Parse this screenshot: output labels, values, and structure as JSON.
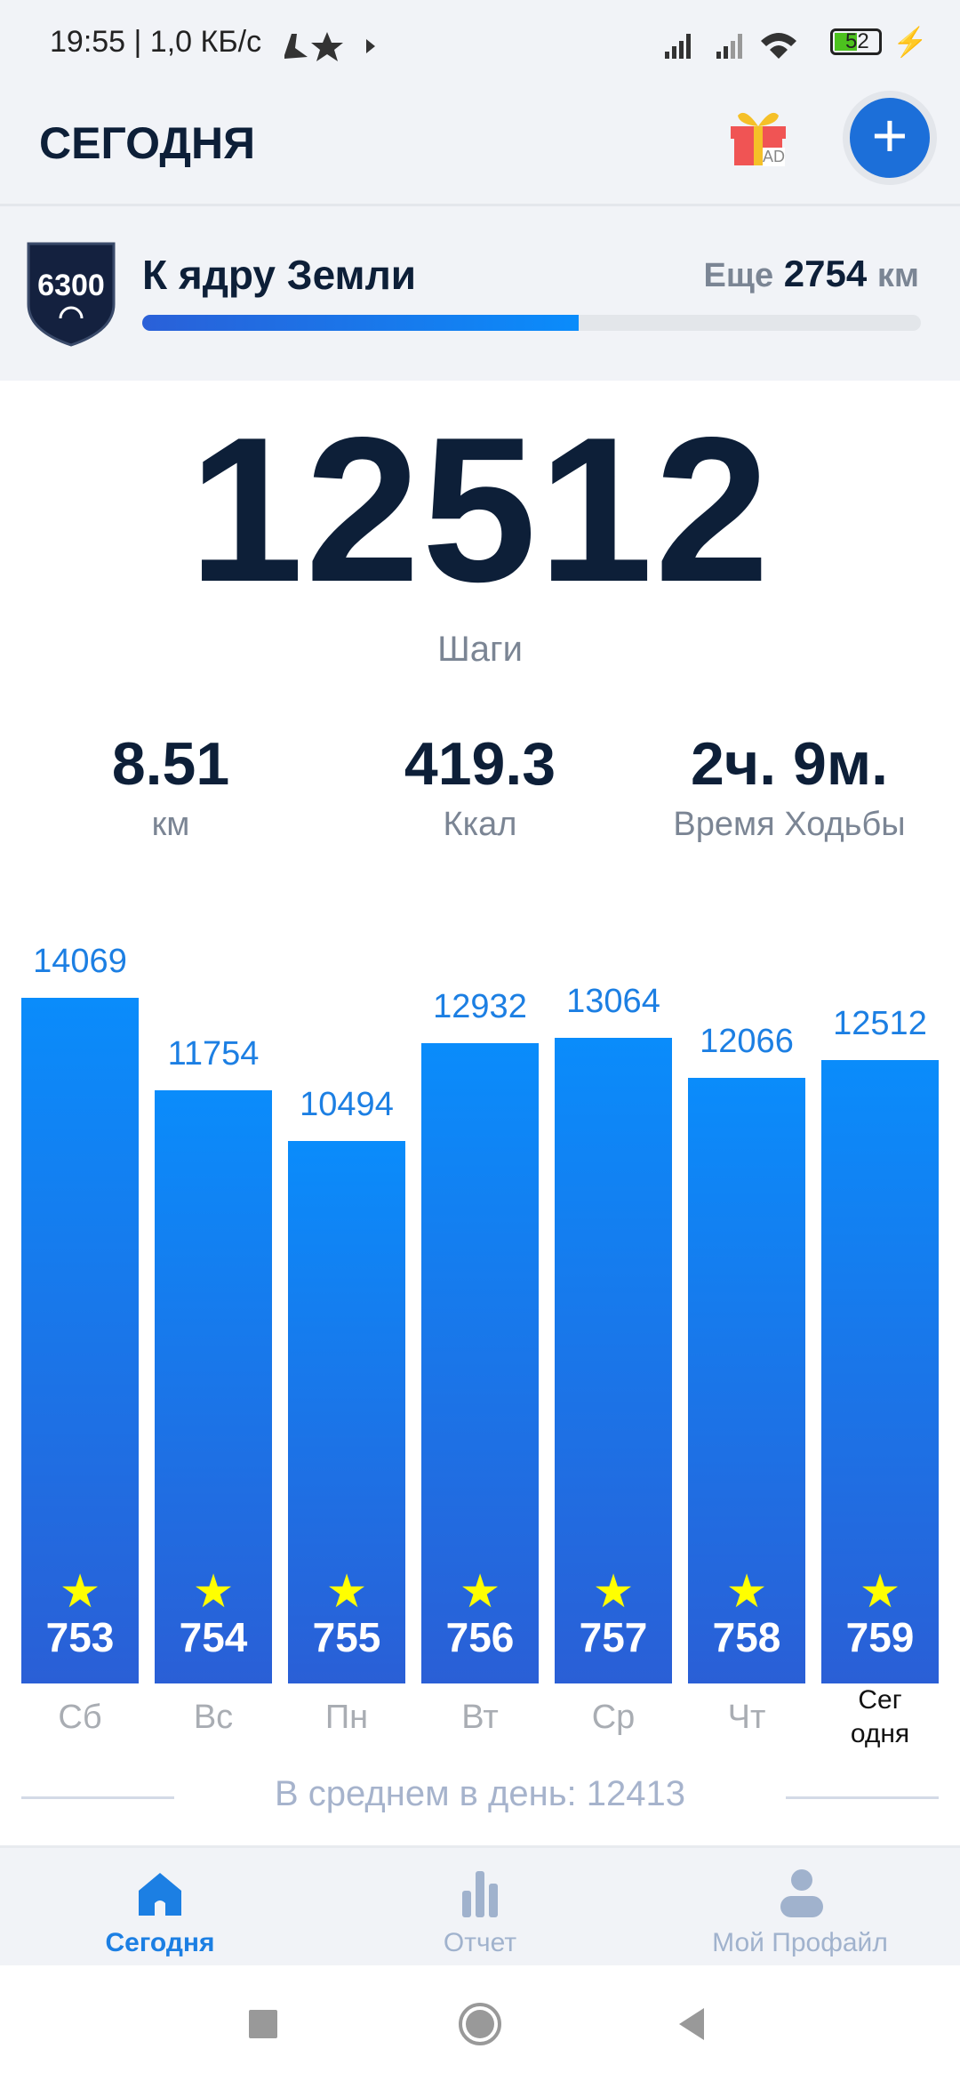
{
  "status_bar": {
    "time_speed": "19:55 | 1,0 КБ/с",
    "battery": "52",
    "icons": [
      "shoe-icon",
      "star-icon",
      "play-icon",
      "signal-icon",
      "signal-icon",
      "wifi-icon",
      "battery-icon",
      "charging-icon"
    ]
  },
  "header": {
    "title": "СЕГОДНЯ",
    "gift_badge": "AD",
    "add_icon": "plus-icon"
  },
  "challenge": {
    "badge": "6300",
    "name": "К ядру Земли",
    "remaining_label": "Еще",
    "remaining_value": "2754",
    "remaining_unit": "км",
    "progress_percent": 56
  },
  "today": {
    "steps": "12512",
    "steps_label": "Шаги"
  },
  "stats": [
    {
      "value": "8.51",
      "label": "км"
    },
    {
      "value": "419.3",
      "label": "Ккал"
    },
    {
      "value": "2ч. 9м.",
      "label": "Время Ходьбы"
    }
  ],
  "chart_data": {
    "type": "bar",
    "categories": [
      "Сб",
      "Вс",
      "Пн",
      "Вт",
      "Ср",
      "Чт",
      "Сег одня"
    ],
    "values": [
      14069,
      11754,
      10494,
      12932,
      13064,
      12066,
      12512
    ],
    "star_numbers": [
      "753",
      "754",
      "755",
      "756",
      "757",
      "758",
      "759"
    ],
    "value_labels": [
      "14069",
      "11754",
      "10494",
      "12932",
      "13064",
      "12066",
      "12512"
    ],
    "colors": {
      "bar_top": "#0a8cfb",
      "bar_bottom": "#2a5fd6",
      "star": "#ffff00"
    }
  },
  "average": "В среднем в день: 12413",
  "nav": [
    {
      "label": "Сегодня",
      "icon": "home-icon",
      "active": true
    },
    {
      "label": "Отчет",
      "icon": "bar-chart-icon"
    },
    {
      "label": "Мой Профайл",
      "icon": "profile-icon"
    }
  ],
  "accent": "#1c7fe3"
}
